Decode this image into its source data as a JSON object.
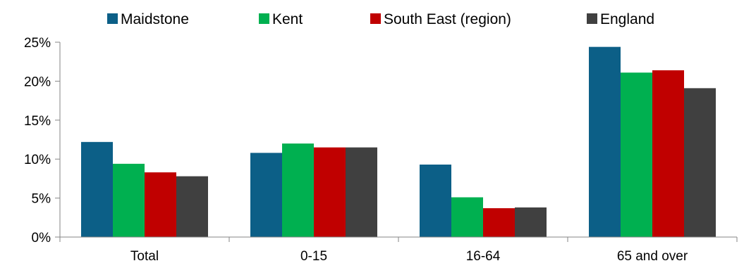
{
  "chart_data": {
    "type": "bar",
    "categories": [
      "Total",
      "0-15",
      "16-64",
      "65 and over"
    ],
    "series": [
      {
        "name": "Maidstone",
        "color": "#0c5f87",
        "values": [
          12.2,
          10.8,
          9.3,
          24.4
        ]
      },
      {
        "name": "Kent",
        "color": "#00b050",
        "values": [
          9.4,
          12.0,
          5.1,
          21.1
        ]
      },
      {
        "name": "South East (region)",
        "color": "#c00000",
        "values": [
          8.3,
          11.5,
          3.7,
          21.4
        ]
      },
      {
        "name": "England",
        "color": "#404040",
        "values": [
          7.8,
          11.5,
          3.8,
          19.1
        ]
      }
    ],
    "ylim": [
      0,
      25
    ],
    "yticks": [
      "0%",
      "5%",
      "10%",
      "15%",
      "20%",
      "25%"
    ],
    "ytick_values": [
      0,
      5,
      10,
      15,
      20,
      25
    ],
    "legend": "top",
    "grid": false
  }
}
